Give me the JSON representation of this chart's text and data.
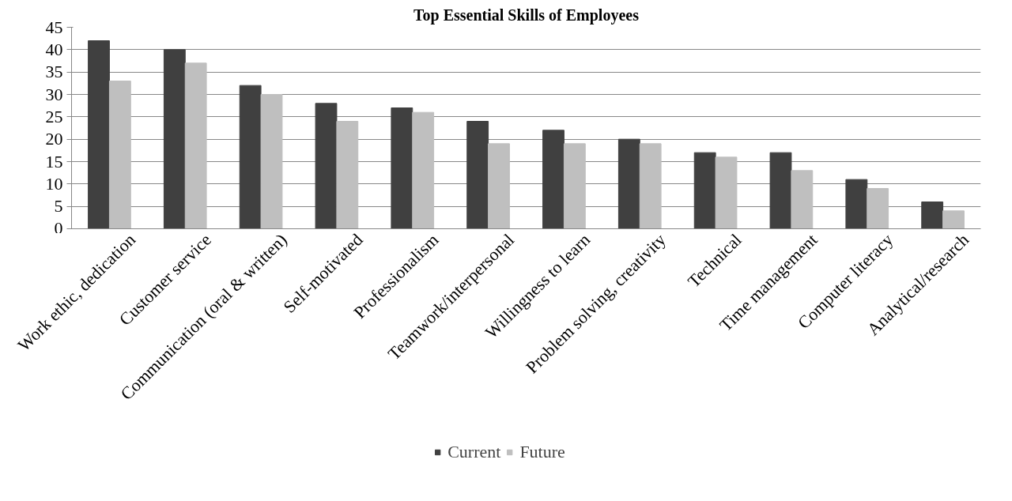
{
  "chart_data": {
    "type": "bar",
    "title": "Top Essential Skills of Employees",
    "categories": [
      "Work ethic, dedication",
      "Customer service",
      "Communication (oral & written)",
      "Self-motivated",
      "Professionalism",
      "Teamwork/interpersonal",
      "Willingness to learn",
      "Problem solving, creativity",
      "Technical",
      "Time management",
      "Computer literacy",
      "Analytical/research"
    ],
    "series": [
      {
        "name": "Current",
        "color": "#404040",
        "values": [
          42,
          40,
          32,
          28,
          27,
          24,
          22,
          20,
          17,
          17,
          11,
          6
        ]
      },
      {
        "name": "Future",
        "color": "#bfbfbf",
        "values": [
          33,
          37,
          30,
          24,
          26,
          19,
          19,
          19,
          16,
          13,
          9,
          4
        ]
      }
    ],
    "ylim": [
      0,
      45
    ],
    "yticks": [
      0,
      5,
      10,
      15,
      20,
      25,
      30,
      35,
      40,
      45
    ],
    "grid": "y",
    "legend": "bottom"
  }
}
